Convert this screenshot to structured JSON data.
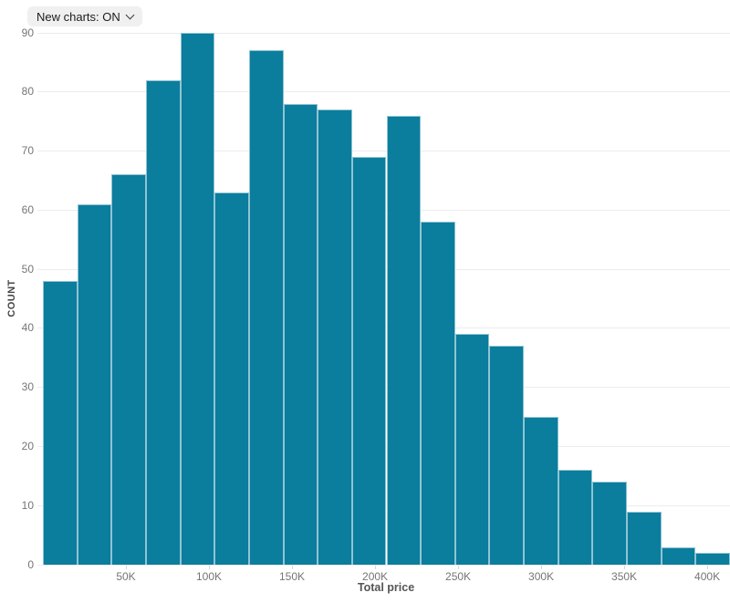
{
  "toolbar": {
    "new_charts_label": "New charts: ON"
  },
  "chart_data": {
    "type": "bar",
    "subtype": "histogram",
    "title": "",
    "xlabel": "Total price",
    "ylabel": "COUNT",
    "bin_count": 20,
    "values": [
      48,
      61,
      66,
      82,
      90,
      63,
      87,
      78,
      77,
      69,
      76,
      58,
      39,
      37,
      25,
      16,
      14,
      9,
      3,
      2
    ],
    "x_ticks": [
      {
        "value": 50000,
        "label": "50K"
      },
      {
        "value": 100000,
        "label": "100K"
      },
      {
        "value": 150000,
        "label": "150K"
      },
      {
        "value": 200000,
        "label": "200K"
      },
      {
        "value": 250000,
        "label": "250K"
      },
      {
        "value": 300000,
        "label": "300K"
      },
      {
        "value": 350000,
        "label": "350K"
      },
      {
        "value": 400000,
        "label": "400K"
      }
    ],
    "x_range": [
      0,
      413700
    ],
    "y_ticks": [
      0,
      10,
      20,
      30,
      40,
      50,
      60,
      70,
      80,
      90
    ],
    "y_range": [
      0,
      90
    ],
    "grid": "horizontal",
    "legend": "none",
    "bar_color": "#0b7d9d",
    "bar_border_color": "rgba(255,255,255,0.55)",
    "gridline_color": "#ececec",
    "tick_label_color": "#757575",
    "axis_title_color": "#4d4d4d"
  }
}
